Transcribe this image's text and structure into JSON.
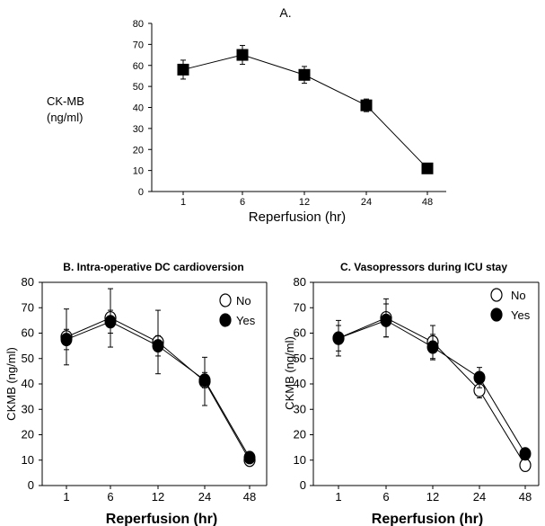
{
  "chart_data": [
    {
      "type": "line",
      "title": "A.",
      "xlabel": "Reperfusion (hr)",
      "ylabel": "CK-MB (ng/ml)",
      "ylabel_lines": [
        "CK-MB",
        "(ng/ml)"
      ],
      "categories": [
        "1",
        "6",
        "12",
        "24",
        "48"
      ],
      "yticks": [
        "0",
        "10",
        "20",
        "30",
        "40",
        "50",
        "60",
        "70",
        "80"
      ],
      "ylim": [
        0,
        80
      ],
      "grid": false,
      "series": [
        {
          "values": [
            58,
            65,
            55.5,
            41,
            11
          ],
          "errors": [
            4.5,
            4.5,
            4,
            3,
            1
          ],
          "marker": "square-filled",
          "color": "#000000"
        }
      ]
    },
    {
      "type": "line",
      "title": "B. Intra-operative DC cardioversion",
      "xlabel": "Reperfusion (hr)",
      "ylabel": "CKMB (ng/ml)",
      "categories": [
        "1",
        "6",
        "12",
        "24",
        "48"
      ],
      "yticks": [
        "0",
        "10",
        "20",
        "30",
        "40",
        "50",
        "60",
        "70",
        "80"
      ],
      "ylim": [
        0,
        80
      ],
      "grid": false,
      "legend_position": "top-right",
      "series": [
        {
          "name": "No",
          "values": [
            58.5,
            66,
            56.5,
            41,
            10
          ],
          "errors": [
            11,
            11.5,
            12.5,
            9.5,
            2
          ],
          "marker": "circle-open",
          "color": "#000000"
        },
        {
          "name": "Yes",
          "values": [
            57.5,
            64.5,
            55,
            41.5,
            11
          ],
          "errors": [
            4,
            4.5,
            4,
            3,
            2
          ],
          "marker": "circle-filled",
          "color": "#000000"
        }
      ]
    },
    {
      "type": "line",
      "title": "C. Vasopressors during ICU stay",
      "xlabel": "Reperfusion (hr)",
      "ylabel": "CKMB (ng/ml)",
      "categories": [
        "1",
        "6",
        "12",
        "24",
        "48"
      ],
      "yticks": [
        "0",
        "10",
        "20",
        "30",
        "40",
        "50",
        "60",
        "70",
        "80"
      ],
      "ylim": [
        0,
        80
      ],
      "grid": false,
      "legend_position": "top-right",
      "series": [
        {
          "name": "No",
          "values": [
            58,
            66,
            56.5,
            37.5,
            8
          ],
          "errors": [
            7,
            7.5,
            6.5,
            3,
            2
          ],
          "marker": "circle-open",
          "color": "#000000"
        },
        {
          "name": "Yes",
          "values": [
            58,
            65,
            54.5,
            42.5,
            12.5
          ],
          "errors": [
            5,
            6.5,
            5,
            4,
            2
          ],
          "marker": "circle-filled",
          "color": "#000000"
        }
      ]
    }
  ]
}
